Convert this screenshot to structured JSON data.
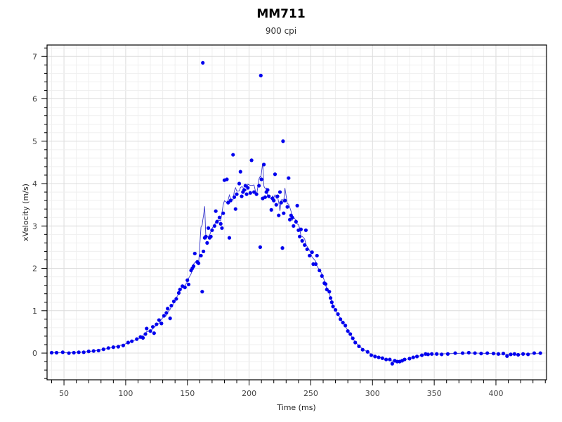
{
  "chart_data": {
    "type": "scatter",
    "title": "MM711",
    "subtitle": "900 cpi",
    "xlabel": "Time (ms)",
    "ylabel": "xVelocity (m/s)",
    "xlim": [
      36.3,
      441
    ],
    "ylim": [
      -0.63,
      7.27
    ],
    "xticks": [
      50,
      100,
      150,
      200,
      250,
      300,
      350,
      400
    ],
    "yticks": [
      0,
      1,
      2,
      3,
      4,
      5,
      6,
      7
    ],
    "grid": true,
    "point_color": "#0000ee",
    "line_color": "#3a3acc",
    "series": [
      {
        "name": "points",
        "points": [
          [
            40,
            0.01
          ],
          [
            44,
            0.01
          ],
          [
            49,
            0.02
          ],
          [
            54,
            0.0
          ],
          [
            58,
            0.01
          ],
          [
            62,
            0.02
          ],
          [
            66,
            0.02
          ],
          [
            70,
            0.04
          ],
          [
            74,
            0.05
          ],
          [
            78,
            0.06
          ],
          [
            82,
            0.09
          ],
          [
            86,
            0.12
          ],
          [
            90,
            0.14
          ],
          [
            94,
            0.15
          ],
          [
            98,
            0.18
          ],
          [
            102,
            0.25
          ],
          [
            105,
            0.28
          ],
          [
            109,
            0.33
          ],
          [
            112,
            0.38
          ],
          [
            114,
            0.36
          ],
          [
            116,
            0.45
          ],
          [
            117,
            0.58
          ],
          [
            120,
            0.52
          ],
          [
            122,
            0.62
          ],
          [
            123,
            0.47
          ],
          [
            125,
            0.68
          ],
          [
            127,
            0.78
          ],
          [
            129,
            0.7
          ],
          [
            131,
            0.88
          ],
          [
            133,
            0.95
          ],
          [
            134,
            1.05
          ],
          [
            136,
            0.82
          ],
          [
            137,
            1.12
          ],
          [
            139,
            1.22
          ],
          [
            141,
            1.28
          ],
          [
            143,
            1.42
          ],
          [
            144,
            1.5
          ],
          [
            146,
            1.58
          ],
          [
            148,
            1.55
          ],
          [
            150,
            1.72
          ],
          [
            151,
            1.62
          ],
          [
            153,
            1.95
          ],
          [
            154,
            2.0
          ],
          [
            155,
            2.05
          ],
          [
            156,
            2.35
          ],
          [
            158,
            2.15
          ],
          [
            159,
            2.12
          ],
          [
            161,
            2.3
          ],
          [
            162,
            1.45
          ],
          [
            162.5,
            6.85
          ],
          [
            163,
            2.4
          ],
          [
            164,
            2.72
          ],
          [
            165,
            2.75
          ],
          [
            166,
            2.6
          ],
          [
            167,
            2.95
          ],
          [
            168,
            2.72
          ],
          [
            169,
            2.75
          ],
          [
            170,
            2.9
          ],
          [
            172,
            3.0
          ],
          [
            173,
            3.35
          ],
          [
            174,
            3.1
          ],
          [
            176,
            3.2
          ],
          [
            177,
            3.05
          ],
          [
            178,
            2.95
          ],
          [
            179,
            3.3
          ],
          [
            180,
            4.08
          ],
          [
            182,
            4.1
          ],
          [
            183,
            3.55
          ],
          [
            184,
            2.72
          ],
          [
            185,
            3.6
          ],
          [
            187,
            4.68
          ],
          [
            188,
            3.68
          ],
          [
            189,
            3.4
          ],
          [
            190,
            3.75
          ],
          [
            192,
            4.0
          ],
          [
            193,
            4.28
          ],
          [
            194,
            3.7
          ],
          [
            195,
            3.8
          ],
          [
            196,
            3.85
          ],
          [
            197,
            3.95
          ],
          [
            198,
            3.75
          ],
          [
            199,
            3.9
          ],
          [
            201,
            3.78
          ],
          [
            202,
            4.55
          ],
          [
            204,
            3.8
          ],
          [
            206,
            3.75
          ],
          [
            208,
            3.95
          ],
          [
            209,
            2.5
          ],
          [
            209.5,
            6.55
          ],
          [
            210,
            4.1
          ],
          [
            211,
            3.65
          ],
          [
            212,
            4.45
          ],
          [
            213,
            3.68
          ],
          [
            214,
            3.8
          ],
          [
            215,
            3.85
          ],
          [
            216,
            3.7
          ],
          [
            218,
            3.38
          ],
          [
            219,
            3.65
          ],
          [
            220,
            3.6
          ],
          [
            221,
            4.22
          ],
          [
            222,
            3.5
          ],
          [
            223,
            3.7
          ],
          [
            224,
            3.25
          ],
          [
            225,
            3.8
          ],
          [
            226,
            3.55
          ],
          [
            227,
            2.48
          ],
          [
            227.5,
            5.0
          ],
          [
            228,
            3.3
          ],
          [
            229,
            3.6
          ],
          [
            231,
            3.45
          ],
          [
            232,
            4.13
          ],
          [
            233,
            3.15
          ],
          [
            234,
            3.25
          ],
          [
            235,
            3.2
          ],
          [
            236,
            3.0
          ],
          [
            238,
            3.1
          ],
          [
            239,
            3.48
          ],
          [
            240,
            2.9
          ],
          [
            241,
            2.75
          ],
          [
            242,
            2.92
          ],
          [
            243,
            2.65
          ],
          [
            245,
            2.55
          ],
          [
            246,
            2.9
          ],
          [
            247,
            2.45
          ],
          [
            249,
            2.3
          ],
          [
            251,
            2.38
          ],
          [
            252,
            2.1
          ],
          [
            254,
            2.1
          ],
          [
            255,
            2.3
          ],
          [
            257,
            1.95
          ],
          [
            259,
            1.82
          ],
          [
            261,
            1.65
          ],
          [
            262,
            1.63
          ],
          [
            263,
            1.5
          ],
          [
            265,
            1.45
          ],
          [
            266,
            1.3
          ],
          [
            267,
            1.2
          ],
          [
            268,
            1.1
          ],
          [
            270,
            1.02
          ],
          [
            272,
            0.92
          ],
          [
            274,
            0.8
          ],
          [
            276,
            0.72
          ],
          [
            278,
            0.65
          ],
          [
            280,
            0.52
          ],
          [
            282,
            0.45
          ],
          [
            284,
            0.35
          ],
          [
            286,
            0.25
          ],
          [
            289,
            0.16
          ],
          [
            292,
            0.08
          ],
          [
            296,
            0.03
          ],
          [
            299,
            -0.05
          ],
          [
            302,
            -0.08
          ],
          [
            305,
            -0.1
          ],
          [
            308,
            -0.12
          ],
          [
            311,
            -0.15
          ],
          [
            314,
            -0.15
          ],
          [
            316,
            -0.25
          ],
          [
            318,
            -0.18
          ],
          [
            320,
            -0.2
          ],
          [
            322,
            -0.2
          ],
          [
            324,
            -0.18
          ],
          [
            326,
            -0.15
          ],
          [
            330,
            -0.13
          ],
          [
            333,
            -0.1
          ],
          [
            336,
            -0.08
          ],
          [
            340,
            -0.05
          ],
          [
            343,
            -0.02
          ],
          [
            345,
            -0.03
          ],
          [
            348,
            -0.02
          ],
          [
            352,
            -0.02
          ],
          [
            356,
            -0.03
          ],
          [
            361,
            -0.02
          ],
          [
            367,
            0.0
          ],
          [
            373,
            0.0
          ],
          [
            378,
            0.01
          ],
          [
            383,
            0.0
          ],
          [
            388,
            -0.01
          ],
          [
            393,
            0.0
          ],
          [
            398,
            -0.01
          ],
          [
            402,
            -0.02
          ],
          [
            406,
            -0.01
          ],
          [
            409,
            -0.07
          ],
          [
            412,
            -0.03
          ],
          [
            415,
            -0.02
          ],
          [
            418,
            -0.04
          ],
          [
            422,
            -0.02
          ],
          [
            426,
            -0.03
          ],
          [
            431,
            0.0
          ],
          [
            436,
            0.0
          ]
        ]
      }
    ]
  }
}
